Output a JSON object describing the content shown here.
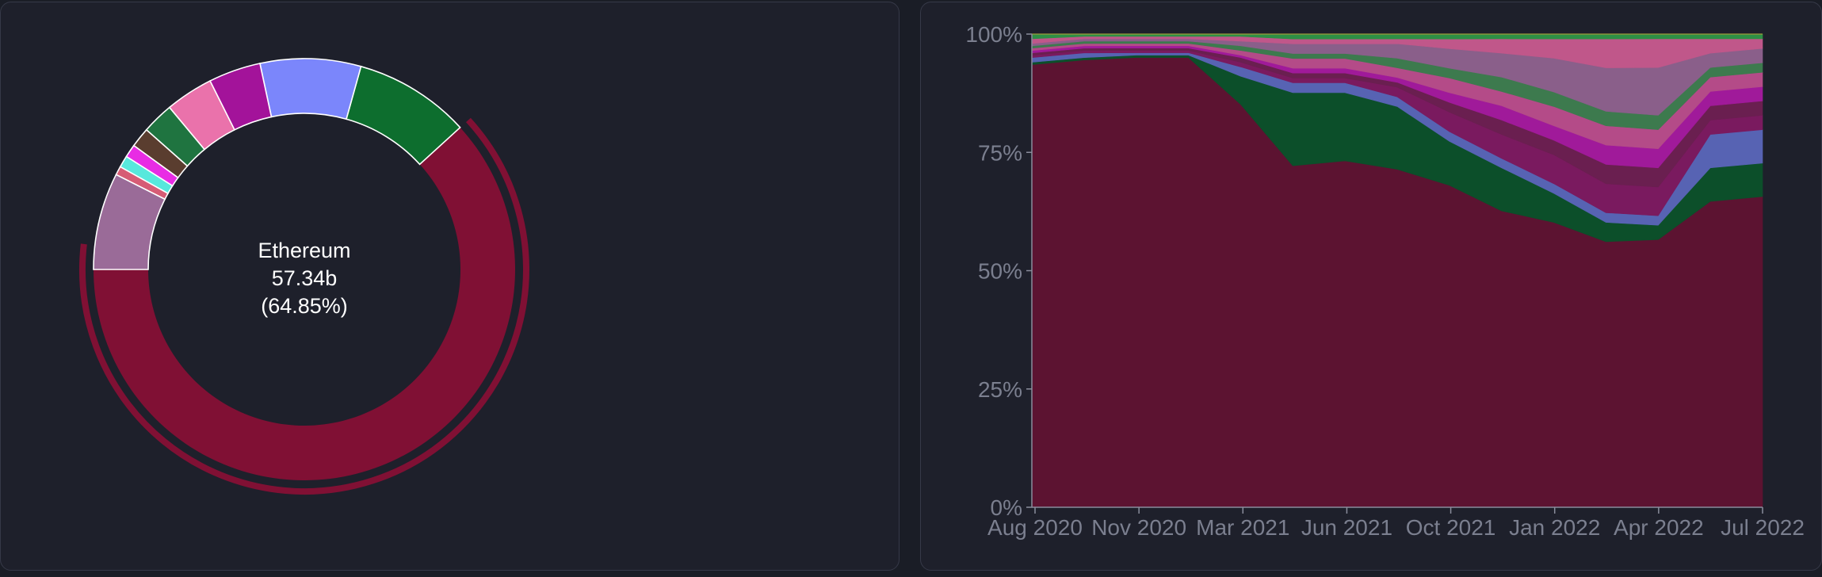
{
  "charts": {
    "donut": {
      "tooltip": {
        "name": "Ethereum",
        "value": "57.34b",
        "percent": "(64.85%)"
      }
    }
  },
  "chart_data": [
    {
      "type": "pie",
      "variant": "donut",
      "highlighted": "Ethereum",
      "slices": [
        {
          "label": "Ethereum",
          "percent": 64.85,
          "color": "#801034"
        },
        {
          "label": "",
          "percent": 9.35,
          "color": "#0d6e2e"
        },
        {
          "label": "",
          "percent": 8.1,
          "color": "#7b86fb"
        },
        {
          "label": "",
          "percent": 4.2,
          "color": "#a3139a"
        },
        {
          "label": "",
          "percent": 3.85,
          "color": "#ea72ab"
        },
        {
          "label": "",
          "percent": 2.55,
          "color": "#1f7440"
        },
        {
          "label": "",
          "percent": 1.6,
          "color": "#5a3d2f"
        },
        {
          "label": "",
          "percent": 1.05,
          "color": "#e82ce4"
        },
        {
          "label": "",
          "percent": 0.95,
          "color": "#58e8dc"
        },
        {
          "label": "",
          "percent": 0.7,
          "color": "#d65c75"
        },
        {
          "label": "",
          "percent": 7.8,
          "color": "#9a6b98"
        }
      ]
    },
    {
      "type": "area",
      "stacked": "percent",
      "ylim": [
        0,
        100
      ],
      "y_ticks": [
        "0%",
        "25%",
        "50%",
        "75%",
        "100%"
      ],
      "x_ticks": [
        "Aug 2020",
        "Nov 2020",
        "Mar 2021",
        "Jun 2021",
        "Oct 2021",
        "Jan 2022",
        "Apr 2022",
        "Jul 2022"
      ],
      "x": [
        "2020-08",
        "2020-10",
        "2020-12",
        "2021-02",
        "2021-03",
        "2021-05",
        "2021-07",
        "2021-09",
        "2021-10",
        "2021-12",
        "2022-02",
        "2022-03",
        "2022-05",
        "2022-06",
        "2022-07"
      ],
      "series": [
        {
          "name": "",
          "color": "#5c1331",
          "values": [
            94,
            95,
            96,
            96,
            86,
            70,
            71,
            70,
            66,
            62,
            59,
            55,
            56,
            64,
            65
          ]
        },
        {
          "name": "",
          "color": "#0c4f2a",
          "values": [
            0.5,
            0.5,
            0.5,
            0.5,
            6,
            15,
            14,
            13,
            9,
            9,
            6,
            4,
            3,
            7,
            7
          ]
        },
        {
          "name": "",
          "color": "#5763b3",
          "values": [
            1,
            1,
            0.5,
            0.5,
            2,
            2,
            2,
            2,
            2,
            2,
            2,
            2,
            2,
            7,
            7
          ]
        },
        {
          "name": "",
          "color": "#7a1a5f",
          "values": [
            0.5,
            0.5,
            0.5,
            0.5,
            1,
            1,
            1,
            2,
            4,
            5,
            6,
            6,
            6,
            3,
            3
          ]
        },
        {
          "name": "",
          "color": "#6a1f50",
          "values": [
            0.5,
            0.5,
            0.5,
            0.5,
            1,
            1,
            1,
            1,
            2,
            3,
            3,
            4,
            4,
            3,
            3
          ]
        },
        {
          "name": "",
          "color": "#a01a9a",
          "values": [
            0.5,
            0.5,
            0.5,
            0.5,
            0.5,
            1,
            1,
            1,
            2,
            3,
            3,
            4,
            4,
            3,
            3
          ]
        },
        {
          "name": "",
          "color": "#b44b88",
          "values": [
            0.5,
            0.5,
            0.5,
            0.5,
            1,
            2,
            2,
            2,
            3,
            3,
            4,
            4,
            4,
            3,
            3
          ]
        },
        {
          "name": "",
          "color": "#3d7a4e",
          "values": [
            0.5,
            0.5,
            0.5,
            0.5,
            1,
            1,
            1,
            2,
            2,
            3,
            3,
            3,
            3,
            2,
            2
          ]
        },
        {
          "name": "",
          "color": "#8a5f8a",
          "values": [
            0.5,
            0.5,
            0.5,
            0.5,
            1,
            2,
            2,
            3,
            4,
            5,
            7,
            9,
            10,
            3,
            3
          ]
        },
        {
          "name": "",
          "color": "#c0578a",
          "values": [
            1,
            0.5,
            0.5,
            0.5,
            1,
            1,
            1,
            1,
            2,
            3,
            4,
            6,
            6,
            3,
            2
          ]
        },
        {
          "name": "",
          "color": "#2e8f45",
          "values": [
            1,
            0.5,
            0.5,
            0.5,
            0.5,
            1,
            1,
            1,
            1,
            1,
            1,
            1,
            1,
            1,
            1
          ]
        }
      ]
    }
  ]
}
